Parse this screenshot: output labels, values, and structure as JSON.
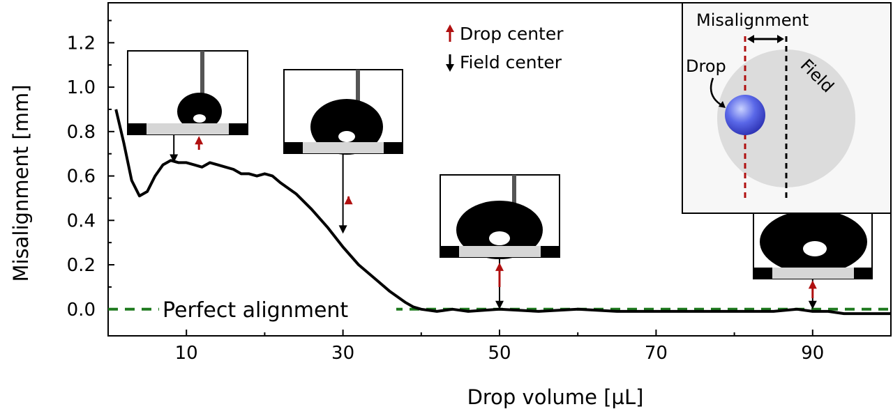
{
  "chart_data": {
    "type": "line",
    "xlabel": "Drop volume [µL]",
    "ylabel": "Misalignment [mm]",
    "xlim": [
      0,
      100
    ],
    "ylim": [
      -0.12,
      1.38
    ],
    "xticks": [
      10,
      30,
      50,
      70,
      90
    ],
    "xtick_labels": [
      "10",
      "30",
      "50",
      "70",
      "90"
    ],
    "yticks": [
      0.0,
      0.2,
      0.4,
      0.6,
      0.8,
      1.0,
      1.2
    ],
    "ytick_labels": [
      "0.0",
      "0.2",
      "0.4",
      "0.6",
      "0.8",
      "1.0",
      "1.2"
    ],
    "grid": false,
    "series": [
      {
        "name": "",
        "color": "#000000",
        "x": [
          1,
          2,
          3,
          4,
          5,
          6,
          7,
          8,
          9,
          10,
          11,
          12,
          13,
          14,
          15,
          16,
          17,
          18,
          19,
          20,
          21,
          22,
          24,
          26,
          28,
          30,
          32,
          34,
          36,
          38,
          39,
          40,
          42,
          44,
          46,
          50,
          55,
          60,
          65,
          70,
          75,
          80,
          85,
          88,
          90,
          92,
          94,
          96,
          98,
          100
        ],
        "y": [
          0.9,
          0.75,
          0.58,
          0.51,
          0.53,
          0.6,
          0.65,
          0.67,
          0.66,
          0.66,
          0.65,
          0.64,
          0.66,
          0.65,
          0.64,
          0.63,
          0.61,
          0.61,
          0.6,
          0.61,
          0.6,
          0.57,
          0.52,
          0.45,
          0.37,
          0.28,
          0.2,
          0.14,
          0.08,
          0.03,
          0.01,
          0.0,
          -0.01,
          0.0,
          -0.01,
          0.0,
          -0.01,
          0.0,
          -0.01,
          -0.01,
          -0.01,
          -0.01,
          -0.01,
          0.0,
          -0.01,
          -0.01,
          -0.02,
          -0.02,
          -0.02,
          -0.02
        ]
      },
      {
        "name": "Perfect alignment",
        "color": "#1f7a1f",
        "dashed": true,
        "x": [
          0,
          100
        ],
        "y": [
          0,
          0
        ]
      }
    ],
    "annotations": [
      {
        "text": "Perfect alignment",
        "x": 20,
        "y": 0.0
      }
    ],
    "legend": {
      "placement": "top",
      "entries": [
        {
          "label": "Drop center",
          "color": "#b01010",
          "symbol": "up-arrow"
        },
        {
          "label": "Field center",
          "color": "#000000",
          "symbol": "down-arrow"
        }
      ]
    },
    "markers": [
      {
        "x": 10,
        "field_center_y": 0.66,
        "drop_center_y": 0.78
      },
      {
        "x": 30,
        "field_center_y": 0.34,
        "drop_center_y": 0.51
      },
      {
        "x": 50,
        "field_center_y": 0.0,
        "drop_center_y": 0.21
      },
      {
        "x": 90,
        "field_center_y": 0.0,
        "drop_center_y": 0.13
      }
    ],
    "schematic": {
      "title": "Misalignment",
      "drop_label": "Drop",
      "field_label": "Field"
    }
  }
}
